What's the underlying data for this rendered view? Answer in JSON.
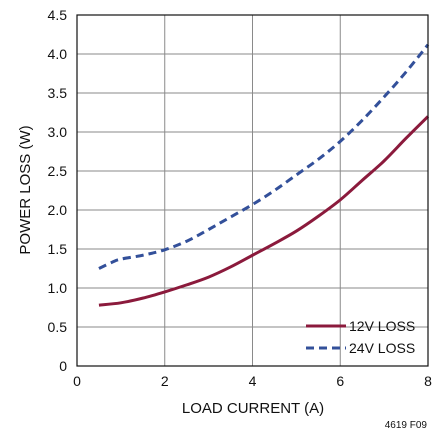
{
  "chart_data": {
    "type": "line",
    "xlabel": "LOAD CURRENT (A)",
    "ylabel": "POWER LOSS (W)",
    "xlim": [
      0,
      8
    ],
    "ylim": [
      0,
      4.5
    ],
    "x_ticks": [
      "0",
      "2",
      "4",
      "6",
      "8"
    ],
    "y_ticks": [
      "0",
      "0.5",
      "1.0",
      "1.5",
      "2.0",
      "2.5",
      "3.0",
      "3.5",
      "4.0",
      "4.5"
    ],
    "grid": true,
    "legend_position": "bottom-right",
    "figure_id": "4619 F09",
    "series": [
      {
        "name": "12V LOSS",
        "color": "#8b1a3c",
        "dash": "solid",
        "points": [
          [
            0.5,
            0.78
          ],
          [
            1.0,
            0.81
          ],
          [
            1.5,
            0.87
          ],
          [
            2.0,
            0.95
          ],
          [
            2.5,
            1.04
          ],
          [
            3.0,
            1.14
          ],
          [
            3.5,
            1.27
          ],
          [
            4.0,
            1.42
          ],
          [
            4.5,
            1.57
          ],
          [
            5.0,
            1.73
          ],
          [
            5.5,
            1.92
          ],
          [
            6.0,
            2.13
          ],
          [
            6.5,
            2.38
          ],
          [
            7.0,
            2.63
          ],
          [
            7.5,
            2.92
          ],
          [
            8.0,
            3.2
          ]
        ]
      },
      {
        "name": "24V LOSS",
        "color": "#33509a",
        "dash": "dashed",
        "points": [
          [
            0.5,
            1.25
          ],
          [
            0.8,
            1.33
          ],
          [
            1.0,
            1.37
          ],
          [
            1.5,
            1.42
          ],
          [
            2.0,
            1.49
          ],
          [
            2.5,
            1.6
          ],
          [
            3.0,
            1.75
          ],
          [
            3.5,
            1.91
          ],
          [
            4.0,
            2.07
          ],
          [
            4.5,
            2.25
          ],
          [
            5.0,
            2.45
          ],
          [
            5.5,
            2.65
          ],
          [
            6.0,
            2.88
          ],
          [
            6.5,
            3.15
          ],
          [
            7.0,
            3.45
          ],
          [
            7.5,
            3.77
          ],
          [
            8.0,
            4.12
          ]
        ]
      }
    ]
  }
}
